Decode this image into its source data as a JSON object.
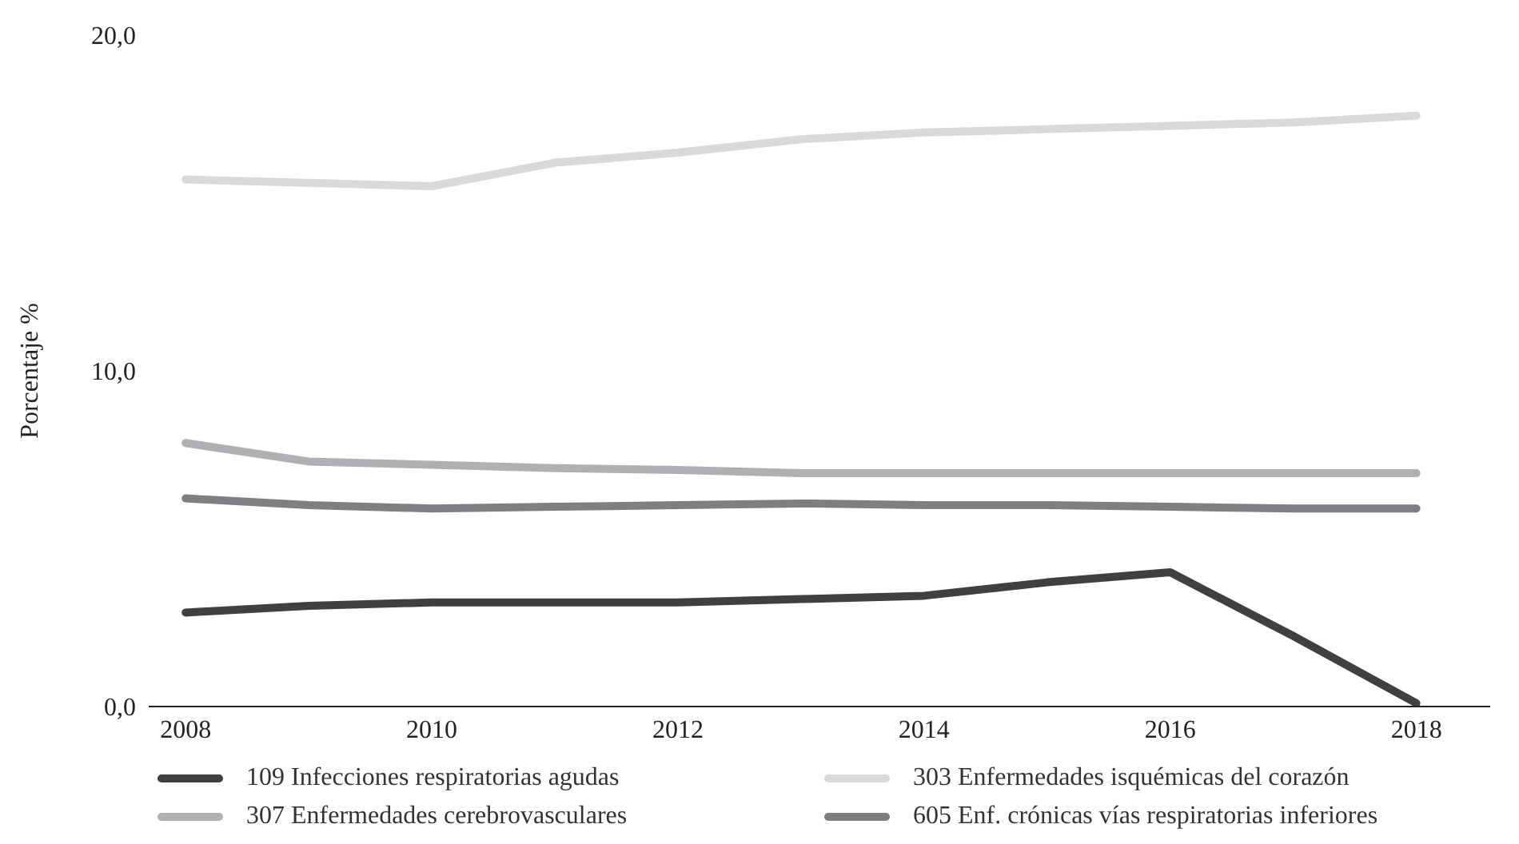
{
  "chart_data": {
    "type": "line",
    "ylabel": "Porcentaje %",
    "x": [
      2008,
      2009,
      2010,
      2011,
      2012,
      2013,
      2014,
      2015,
      2016,
      2017,
      2018
    ],
    "xlim": [
      2007.7,
      2018.6
    ],
    "xticks": [
      2008,
      2010,
      2012,
      2014,
      2016,
      2018
    ],
    "ylim": [
      0,
      20
    ],
    "yticks": [
      {
        "value": 0,
        "label": "0,0"
      },
      {
        "value": 10,
        "label": "10,0"
      },
      {
        "value": 20,
        "label": "20,0"
      }
    ],
    "grid": false,
    "legend": "bottom",
    "marker": "none",
    "line_style": "solid",
    "series": [
      {
        "name": "109 Infecciones respiratorias agudas",
        "color": "#404040",
        "values": [
          2.8,
          3.0,
          3.1,
          3.1,
          3.1,
          3.2,
          3.3,
          3.7,
          4.0,
          2.1,
          0.1
        ]
      },
      {
        "name": "303 Enfermedades isquémicas del corazón",
        "color": "#d9d9d9",
        "values": [
          15.7,
          15.6,
          15.5,
          16.2,
          16.5,
          16.9,
          17.1,
          17.2,
          17.3,
          17.4,
          17.6
        ]
      },
      {
        "name": "307 Enfermedades cerebrovasculares",
        "color": "#b0b0b3",
        "values": [
          7.85,
          7.3,
          7.2,
          7.1,
          7.05,
          6.95,
          6.95,
          6.95,
          6.95,
          6.95,
          6.95
        ]
      },
      {
        "name": "605 Enf. crónicas vías respiratorias inferiores",
        "color": "#7f7f82",
        "values": [
          6.2,
          6.0,
          5.9,
          5.95,
          6.0,
          6.05,
          6.0,
          6.0,
          5.95,
          5.9,
          5.9
        ]
      }
    ]
  }
}
